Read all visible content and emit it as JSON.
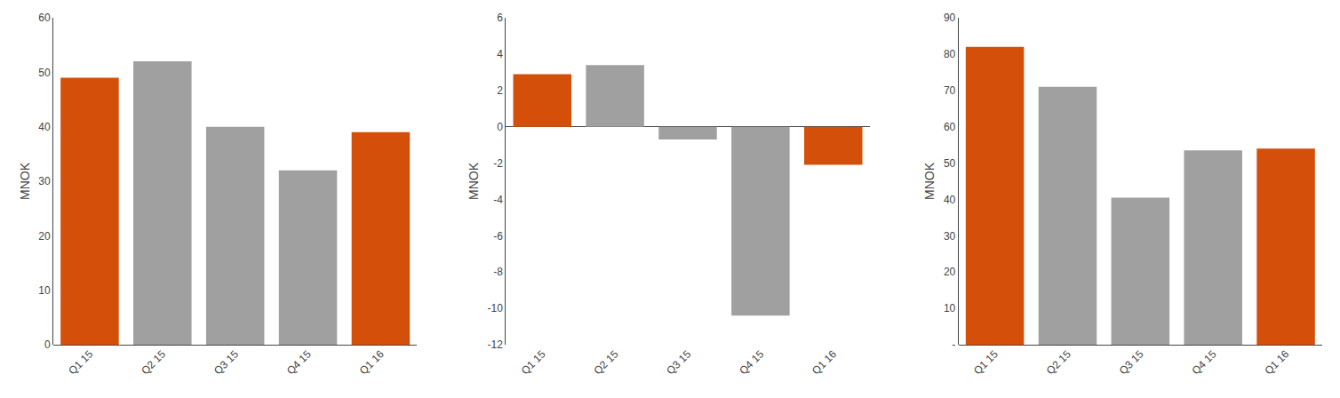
{
  "chart_data": [
    {
      "type": "bar",
      "categories": [
        "Q1 15",
        "Q2 15",
        "Q3 15",
        "Q4 15",
        "Q1 16"
      ],
      "values": [
        49,
        52,
        40,
        32,
        39
      ],
      "colors": [
        "#d4500a",
        "#a0a0a0",
        "#a0a0a0",
        "#a0a0a0",
        "#d4500a"
      ],
      "ylabel": "MNOK",
      "ylim": [
        0,
        60
      ],
      "yticks": [
        0,
        10,
        20,
        30,
        40,
        50,
        60
      ],
      "grid": false
    },
    {
      "type": "bar",
      "categories": [
        "Q1 15",
        "Q2 15",
        "Q3 15",
        "Q4 15",
        "Q1 16"
      ],
      "values": [
        2.9,
        3.4,
        -0.7,
        -10.4,
        -2.1
      ],
      "colors": [
        "#d4500a",
        "#a0a0a0",
        "#a0a0a0",
        "#a0a0a0",
        "#d4500a"
      ],
      "ylabel": "MNOK",
      "ylim": [
        -12,
        6
      ],
      "yticks": [
        -12,
        -10,
        -8,
        -6,
        -4,
        -2,
        0,
        2,
        4,
        6
      ],
      "grid": false
    },
    {
      "type": "bar",
      "categories": [
        "Q1 15",
        "Q2 15",
        "Q3 15",
        "Q4 15",
        "Q1 16"
      ],
      "values": [
        82,
        71,
        40.5,
        53.5,
        54
      ],
      "colors": [
        "#d4500a",
        "#a0a0a0",
        "#a0a0a0",
        "#a0a0a0",
        "#d4500a"
      ],
      "ylabel": "MNOK",
      "ylim": [
        0,
        90
      ],
      "yticks": [
        {
          "value": 0,
          "label": "-"
        },
        10,
        20,
        30,
        40,
        50,
        60,
        70,
        80,
        90
      ],
      "grid": false
    }
  ]
}
